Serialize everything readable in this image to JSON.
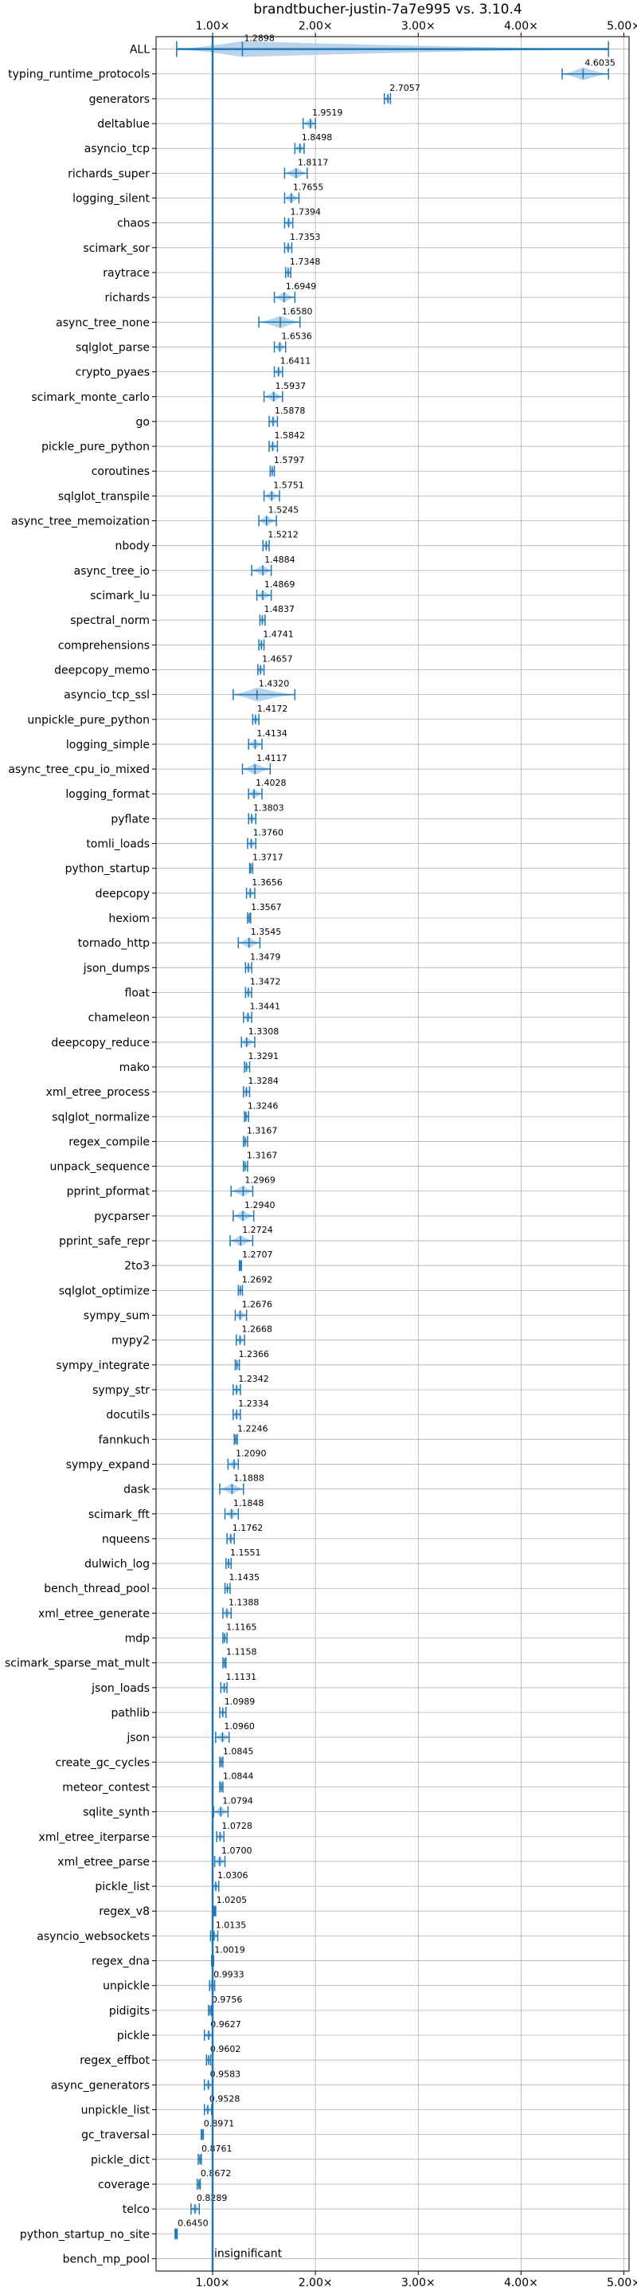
{
  "chart_data": {
    "type": "violin",
    "title": "brandtbucher-justin-7a7e995 vs. 3.10.4",
    "x_ticks": [
      "1.00×",
      "2.00×",
      "3.00×",
      "4.00×",
      "5.00×"
    ],
    "x_tick_values": [
      1,
      2,
      3,
      4,
      5
    ],
    "xlim": [
      0.45,
      5.05
    ],
    "reference_line": 1.0,
    "grid": true,
    "color": "#1f77b4",
    "fill_color": "#aecde8",
    "annotation": "insignificant",
    "categories": [
      "ALL",
      "typing_runtime_protocols",
      "generators",
      "deltablue",
      "asyncio_tcp",
      "richards_super",
      "logging_silent",
      "chaos",
      "scimark_sor",
      "raytrace",
      "richards",
      "async_tree_none",
      "sqlglot_parse",
      "crypto_pyaes",
      "scimark_monte_carlo",
      "go",
      "pickle_pure_python",
      "coroutines",
      "sqlglot_transpile",
      "async_tree_memoization",
      "nbody",
      "async_tree_io",
      "scimark_lu",
      "spectral_norm",
      "comprehensions",
      "deepcopy_memo",
      "asyncio_tcp_ssl",
      "unpickle_pure_python",
      "logging_simple",
      "async_tree_cpu_io_mixed",
      "logging_format",
      "pyflate",
      "tomli_loads",
      "python_startup",
      "deepcopy",
      "hexiom",
      "tornado_http",
      "json_dumps",
      "float",
      "chameleon",
      "deepcopy_reduce",
      "mako",
      "xml_etree_process",
      "sqlglot_normalize",
      "regex_compile",
      "unpack_sequence",
      "pprint_pformat",
      "pycparser",
      "pprint_safe_repr",
      "2to3",
      "sqlglot_optimize",
      "sympy_sum",
      "mypy2",
      "sympy_integrate",
      "sympy_str",
      "docutils",
      "fannkuch",
      "sympy_expand",
      "dask",
      "scimark_fft",
      "nqueens",
      "dulwich_log",
      "bench_thread_pool",
      "xml_etree_generate",
      "mdp",
      "scimark_sparse_mat_mult",
      "json_loads",
      "pathlib",
      "json",
      "create_gc_cycles",
      "meteor_contest",
      "sqlite_synth",
      "xml_etree_iterparse",
      "xml_etree_parse",
      "pickle_list",
      "regex_v8",
      "asyncio_websockets",
      "regex_dna",
      "unpickle",
      "pidigits",
      "pickle",
      "regex_effbot",
      "async_generators",
      "unpickle_list",
      "gc_traversal",
      "pickle_dict",
      "coverage",
      "telco",
      "python_startup_no_site",
      "bench_mp_pool"
    ],
    "value_labels": [
      "1.2898",
      "4.6035",
      "2.7057",
      "1.9519",
      "1.8498",
      "1.8117",
      "1.7655",
      "1.7394",
      "1.7353",
      "1.7348",
      "1.6949",
      "1.6580",
      "1.6536",
      "1.6411",
      "1.5937",
      "1.5878",
      "1.5842",
      "1.5797",
      "1.5751",
      "1.5245",
      "1.5212",
      "1.4884",
      "1.4869",
      "1.4837",
      "1.4741",
      "1.4657",
      "1.4320",
      "1.4172",
      "1.4134",
      "1.4117",
      "1.4028",
      "1.3803",
      "1.3760",
      "1.3717",
      "1.3656",
      "1.3567",
      "1.3545",
      "1.3479",
      "1.3472",
      "1.3441",
      "1.3308",
      "1.3291",
      "1.3284",
      "1.3246",
      "1.3167",
      "1.3167",
      "1.2969",
      "1.2940",
      "1.2724",
      "1.2707",
      "1.2692",
      "1.2676",
      "1.2668",
      "1.2366",
      "1.2342",
      "1.2334",
      "1.2246",
      "1.2090",
      "1.1888",
      "1.1848",
      "1.1762",
      "1.1551",
      "1.1435",
      "1.1388",
      "1.1165",
      "1.1158",
      "1.1131",
      "1.0989",
      "1.0960",
      "1.0845",
      "1.0844",
      "1.0794",
      "1.0728",
      "1.0700",
      "1.0306",
      "1.0205",
      "1.0135",
      "1.0019",
      "0.9933",
      "0.9756",
      "0.9627",
      "0.9602",
      "0.9583",
      "0.9528",
      "0.8971",
      "0.8761",
      "0.8672",
      "0.8289",
      "0.6450",
      ""
    ],
    "values": [
      1.2898,
      4.6035,
      2.7057,
      1.9519,
      1.8498,
      1.8117,
      1.7655,
      1.7394,
      1.7353,
      1.7348,
      1.6949,
      1.658,
      1.6536,
      1.6411,
      1.5937,
      1.5878,
      1.5842,
      1.5797,
      1.5751,
      1.5245,
      1.5212,
      1.4884,
      1.4869,
      1.4837,
      1.4741,
      1.4657,
      1.432,
      1.4172,
      1.4134,
      1.4117,
      1.4028,
      1.3803,
      1.376,
      1.3717,
      1.3656,
      1.3567,
      1.3545,
      1.3479,
      1.3472,
      1.3441,
      1.3308,
      1.3291,
      1.3284,
      1.3246,
      1.3167,
      1.3167,
      1.2969,
      1.294,
      1.2724,
      1.2707,
      1.2692,
      1.2676,
      1.2668,
      1.2366,
      1.2342,
      1.2334,
      1.2246,
      1.209,
      1.1888,
      1.1848,
      1.1762,
      1.1551,
      1.1435,
      1.1388,
      1.1165,
      1.1158,
      1.1131,
      1.0989,
      1.096,
      1.0845,
      1.0844,
      1.0794,
      1.0728,
      1.07,
      1.0306,
      1.0205,
      1.0135,
      1.0019,
      0.9933,
      0.9756,
      0.9627,
      0.9602,
      0.9583,
      0.9528,
      0.8971,
      0.8761,
      0.8672,
      0.8289,
      0.645,
      null
    ],
    "spread": [
      [
        0.65,
        4.85
      ],
      [
        4.4,
        4.85
      ],
      [
        2.67,
        2.73
      ],
      [
        1.88,
        2.0
      ],
      [
        1.8,
        1.89
      ],
      [
        1.7,
        1.92
      ],
      [
        1.7,
        1.84
      ],
      [
        1.7,
        1.78
      ],
      [
        1.7,
        1.77
      ],
      [
        1.71,
        1.76
      ],
      [
        1.6,
        1.8
      ],
      [
        1.45,
        1.85
      ],
      [
        1.6,
        1.71
      ],
      [
        1.6,
        1.68
      ],
      [
        1.5,
        1.68
      ],
      [
        1.55,
        1.63
      ],
      [
        1.55,
        1.63
      ],
      [
        1.56,
        1.6
      ],
      [
        1.5,
        1.65
      ],
      [
        1.45,
        1.62
      ],
      [
        1.49,
        1.55
      ],
      [
        1.38,
        1.57
      ],
      [
        1.43,
        1.57
      ],
      [
        1.46,
        1.51
      ],
      [
        1.45,
        1.5
      ],
      [
        1.44,
        1.5
      ],
      [
        1.2,
        1.8
      ],
      [
        1.39,
        1.45
      ],
      [
        1.35,
        1.48
      ],
      [
        1.29,
        1.56
      ],
      [
        1.35,
        1.48
      ],
      [
        1.35,
        1.42
      ],
      [
        1.34,
        1.42
      ],
      [
        1.36,
        1.39
      ],
      [
        1.33,
        1.41
      ],
      [
        1.34,
        1.37
      ],
      [
        1.25,
        1.46
      ],
      [
        1.32,
        1.38
      ],
      [
        1.32,
        1.38
      ],
      [
        1.3,
        1.38
      ],
      [
        1.28,
        1.41
      ],
      [
        1.31,
        1.36
      ],
      [
        1.3,
        1.36
      ],
      [
        1.31,
        1.35
      ],
      [
        1.3,
        1.34
      ],
      [
        1.3,
        1.34
      ],
      [
        1.18,
        1.39
      ],
      [
        1.2,
        1.4
      ],
      [
        1.17,
        1.39
      ],
      [
        1.26,
        1.28
      ],
      [
        1.25,
        1.29
      ],
      [
        1.22,
        1.33
      ],
      [
        1.23,
        1.31
      ],
      [
        1.22,
        1.26
      ],
      [
        1.2,
        1.27
      ],
      [
        1.2,
        1.27
      ],
      [
        1.21,
        1.24
      ],
      [
        1.15,
        1.25
      ],
      [
        1.07,
        1.3
      ],
      [
        1.12,
        1.25
      ],
      [
        1.14,
        1.21
      ],
      [
        1.13,
        1.18
      ],
      [
        1.12,
        1.17
      ],
      [
        1.1,
        1.18
      ],
      [
        1.1,
        1.14
      ],
      [
        1.1,
        1.13
      ],
      [
        1.08,
        1.14
      ],
      [
        1.07,
        1.13
      ],
      [
        1.03,
        1.16
      ],
      [
        1.07,
        1.1
      ],
      [
        1.07,
        1.1
      ],
      [
        1.01,
        1.15
      ],
      [
        1.04,
        1.11
      ],
      [
        1.02,
        1.12
      ],
      [
        1.0,
        1.06
      ],
      [
        1.01,
        1.03
      ],
      [
        0.98,
        1.05
      ],
      [
        0.99,
        1.01
      ],
      [
        0.97,
        1.02
      ],
      [
        0.96,
        0.99
      ],
      [
        0.92,
        1.0
      ],
      [
        0.94,
        0.98
      ],
      [
        0.92,
        1.0
      ],
      [
        0.92,
        0.99
      ],
      [
        0.89,
        0.91
      ],
      [
        0.86,
        0.89
      ],
      [
        0.85,
        0.88
      ],
      [
        0.79,
        0.87
      ],
      [
        0.635,
        0.655
      ],
      null
    ]
  }
}
